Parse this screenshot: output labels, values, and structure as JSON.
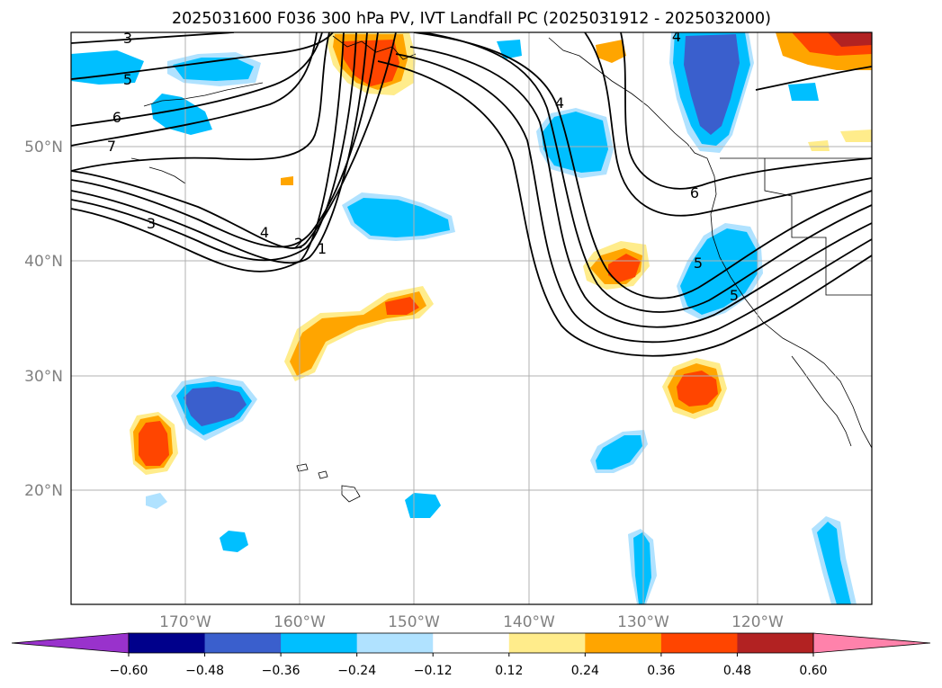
{
  "chart_data": {
    "type": "contour-map",
    "title": "2025031600 F036 300 hPa PV, IVT Landfall PC (2025031912 - 2025032000)",
    "map": {
      "lon_range": [
        -180,
        -110
      ],
      "lat_range": [
        10,
        60
      ],
      "xticks": [
        "170°W",
        "160°W",
        "150°W",
        "140°W",
        "130°W",
        "120°W"
      ],
      "xtick_values": [
        -170,
        -160,
        -150,
        -140,
        -130,
        -120
      ],
      "yticks": [
        "20°N",
        "30°N",
        "40°N",
        "50°N"
      ],
      "ytick_values": [
        20,
        30,
        40,
        50
      ],
      "grid": true
    },
    "colorbar": {
      "orientation": "horizontal",
      "extend": "both",
      "levels": [
        -0.6,
        -0.48,
        -0.36,
        -0.24,
        -0.12,
        0.12,
        0.24,
        0.36,
        0.48,
        0.6
      ],
      "tick_labels": [
        "−0.60",
        "−0.48",
        "−0.36",
        "−0.24",
        "−0.12",
        "0.12",
        "0.24",
        "0.36",
        "0.48",
        "0.60"
      ],
      "colors": [
        "#9932cc",
        "#00008b",
        "#3a5fcd",
        "#00bfff",
        "#b0e2ff",
        "#ffffff",
        "#ffec8b",
        "#ffa500",
        "#ff4500",
        "#b22222",
        "#ff82ab"
      ]
    },
    "contour_labels": [
      "3",
      "5",
      "6",
      "7",
      "3",
      "4",
      "2",
      "1",
      "4",
      "6",
      "5",
      "5",
      "4"
    ],
    "anomalies": [
      {
        "sign": "positive",
        "lon": -152,
        "lat": 57,
        "max": 0.4
      },
      {
        "sign": "positive",
        "lon": -114,
        "lat": 58,
        "max": 0.5
      },
      {
        "sign": "positive",
        "lon": -132,
        "lat": 39.5,
        "max": 0.4
      },
      {
        "sign": "positive",
        "lon": -155,
        "lat": 34,
        "max": 0.3
      },
      {
        "sign": "positive",
        "lon": -173,
        "lat": 24.5,
        "max": 0.4
      },
      {
        "sign": "positive",
        "lon": -126,
        "lat": 29,
        "max": 0.4
      },
      {
        "sign": "negative",
        "lon": -125,
        "lat": 55,
        "max": -0.48
      },
      {
        "sign": "negative",
        "lon": -168,
        "lat": 28,
        "max": -0.4
      },
      {
        "sign": "negative",
        "lon": -125,
        "lat": 39,
        "max": -0.36
      },
      {
        "sign": "negative",
        "lon": -152,
        "lat": 43,
        "max": -0.3
      },
      {
        "sign": "negative",
        "lon": -135,
        "lat": 49,
        "max": -0.3
      }
    ]
  }
}
